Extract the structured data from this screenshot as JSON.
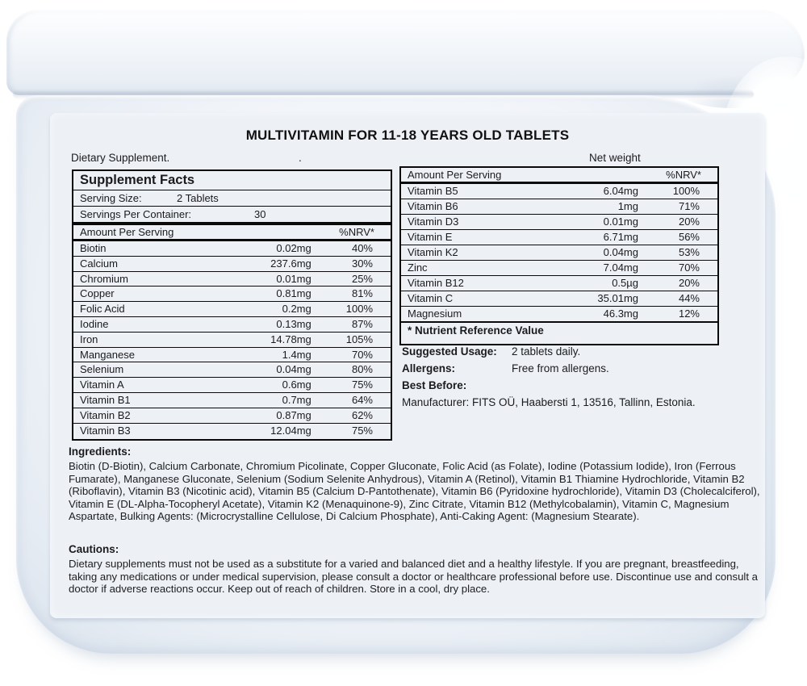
{
  "product": {
    "title": "MULTIVITAMIN FOR 11-18 YEARS OLD TABLETS",
    "dietary_supplement": "Dietary Supplement.",
    "separator_dot": ".",
    "net_weight": "Net weight"
  },
  "facts": {
    "heading": "Supplement Facts",
    "serving_size_label": "Serving Size:",
    "serving_size_value": "2 Tablets",
    "servings_label": "Servings Per Container:",
    "servings_value": "30",
    "col_amount": "Amount Per Serving",
    "col_nrv": "%NRV*",
    "left_rows": [
      {
        "name": "Biotin",
        "amount": "0.02mg",
        "nrv": "40%"
      },
      {
        "name": "Calcium",
        "amount": "237.6mg",
        "nrv": "30%"
      },
      {
        "name": "Chromium",
        "amount": "0.01mg",
        "nrv": "25%"
      },
      {
        "name": "Copper",
        "amount": "0.81mg",
        "nrv": "81%"
      },
      {
        "name": "Folic Acid",
        "amount": "0.2mg",
        "nrv": "100%"
      },
      {
        "name": "Iodine",
        "amount": "0.13mg",
        "nrv": "87%"
      },
      {
        "name": "Iron",
        "amount": "14.78mg",
        "nrv": "105%"
      },
      {
        "name": "Manganese",
        "amount": "1.4mg",
        "nrv": "70%"
      },
      {
        "name": "Selenium",
        "amount": "0.04mg",
        "nrv": "80%"
      },
      {
        "name": "Vitamin A",
        "amount": "0.6mg",
        "nrv": "75%"
      },
      {
        "name": "Vitamin B1",
        "amount": "0.7mg",
        "nrv": "64%"
      },
      {
        "name": "Vitamin B2",
        "amount": "0.87mg",
        "nrv": "62%"
      },
      {
        "name": "Vitamin B3",
        "amount": "12.04mg",
        "nrv": "75%"
      }
    ],
    "right_rows": [
      {
        "name": "Vitamin B5",
        "amount": "6.04mg",
        "nrv": "100%"
      },
      {
        "name": "Vitamin B6",
        "amount": "1mg",
        "nrv": "71%"
      },
      {
        "name": "Vitamin D3",
        "amount": "0.01mg",
        "nrv": "20%"
      },
      {
        "name": "Vitamin E",
        "amount": "6.71mg",
        "nrv": "56%"
      },
      {
        "name": "Vitamin K2",
        "amount": "0.04mg",
        "nrv": "53%"
      },
      {
        "name": "Zinc",
        "amount": "7.04mg",
        "nrv": "70%"
      },
      {
        "name": "Vitamin B12",
        "amount": "0.5µg",
        "nrv": "20%"
      },
      {
        "name": "Vitamin C",
        "amount": "35.01mg",
        "nrv": "44%"
      },
      {
        "name": "Magnesium",
        "amount": "46.3mg",
        "nrv": "12%"
      }
    ],
    "footnote": "* Nutrient Reference Value"
  },
  "info": {
    "suggested_usage_label": "Suggested Usage:",
    "suggested_usage_value": "2 tablets daily.",
    "allergens_label": "Allergens:",
    "allergens_value": "Free from allergens.",
    "best_before_label": "Best Before:",
    "manufacturer": "Manufacturer: FITS OÜ, Haabersti 1, 13516, Tallinn, Estonia."
  },
  "ingredients": {
    "heading": "Ingredients:",
    "text": "Biotin (D-Biotin), Calcium Carbonate, Chromium Picolinate, Copper Gluconate, Folic Acid (as Folate), Iodine (Potassium Iodide), Iron (Ferrous Fumarate), Manganese Gluconate, Selenium (Sodium Selenite Anhydrous), Vitamin A (Retinol), Vitamin B1 Thiamine Hydrochloride, Vitamin B2 (Riboflavin), Vitamin B3 (Nicotinic acid), Vitamin B5 (Calcium D-Pantothenate), Vitamin B6 (Pyridoxine hydrochloride), Vitamin D3 (Cholecalciferol), Vitamin E (DL-Alpha-Tocopheryl Acetate), Vitamin K2 (Menaquinone-9), Zinc Citrate, Vitamin B12 (Methylcobalamin), Vitamin C, Magnesium Aspartate, Bulking Agents: (Microcrystalline Cellulose, Di Calcium Phosphate), Anti-Caking Agent: (Magnesium Stearate)."
  },
  "cautions": {
    "heading": "Cautions:",
    "text": "Dietary supplements must not be used as a substitute for a varied and balanced diet and a healthy lifestyle. If you are pregnant, breastfeeding, taking any medications or under medical supervision, please consult a doctor or healthcare professional before use. Discontinue use and consult a doctor if adverse reactions occur. Keep out of reach of children. Store in a cool, dry place."
  },
  "colors": {
    "label_background": "#edf1f6",
    "shell_edge": "#d9e2ed",
    "text": "#1b1b1d",
    "rule": "#0a0a0a"
  }
}
